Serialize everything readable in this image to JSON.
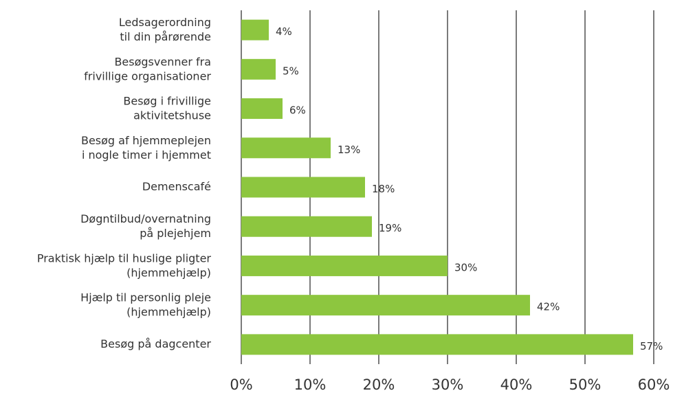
{
  "chart_data": {
    "type": "bar",
    "orientation": "horizontal",
    "categories": [
      "Ledsagerordning\ntil din pårørende",
      "Besøgsvenner fra\nfrivillige organisationer",
      "Besøg i frivillige\naktivitetshuse",
      "Besøg af hjemmeplejen\ni nogle timer i hjemmet",
      "Demenscafé",
      "Døgntilbud/overnatning\npå plejehjem",
      "Praktisk hjælp til huslige pligter\n(hjemmehjælp)",
      "Hjælp til personlig pleje\n(hjemmehjælp)",
      "Besøg på dagcenter"
    ],
    "values": [
      4,
      5,
      6,
      13,
      18,
      19,
      30,
      42,
      57
    ],
    "value_labels": [
      "4%",
      "5%",
      "6%",
      "13%",
      "18%",
      "19%",
      "30%",
      "42%",
      "57%"
    ],
    "color": "#8dc63f",
    "xlim": [
      0,
      60
    ],
    "xticks": [
      {
        "value": 0,
        "label": "0%"
      },
      {
        "value": 10,
        "label": "10%"
      },
      {
        "value": 20,
        "label": "20%"
      },
      {
        "value": 30,
        "label": "30%"
      },
      {
        "value": 40,
        "label": "40%"
      },
      {
        "value": 50,
        "label": "50%"
      },
      {
        "value": 60,
        "label": "60%"
      }
    ],
    "grid": true
  }
}
